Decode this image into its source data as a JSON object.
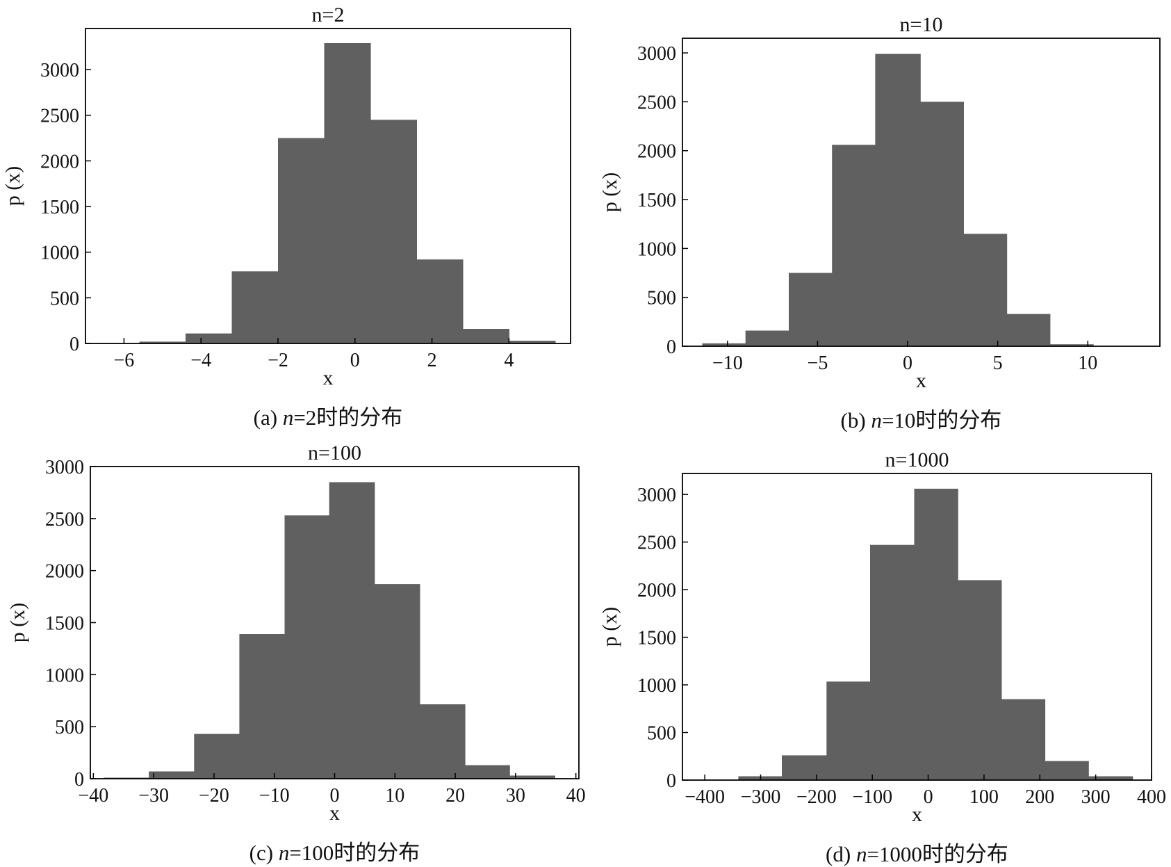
{
  "colors": {
    "bar": "#606060",
    "axis": "#000000",
    "text": "#111111"
  },
  "chart_data": [
    {
      "type": "bar",
      "title": "n=2",
      "xlabel": "x",
      "ylabel": "p (x)",
      "caption_prefix": "(a) ",
      "caption_var": "n",
      "caption_suffix": "=2时的分布",
      "xlim": [
        -7,
        5.6
      ],
      "ylim": [
        0,
        3450
      ],
      "xticks": [
        -6,
        -4,
        -2,
        0,
        2,
        4
      ],
      "xtick_labels": [
        "−6",
        "−4",
        "−2",
        "0",
        "2",
        "4"
      ],
      "yticks": [
        0,
        500,
        1000,
        1500,
        2000,
        2500,
        3000
      ],
      "ytick_labels": [
        "0",
        "500",
        "1000",
        "1500",
        "2000",
        "2500",
        "3000"
      ],
      "bin_edges": [
        -6.5,
        -5.6,
        -4.4,
        -3.2,
        -2.0,
        -0.8,
        0.4,
        1.6,
        2.8,
        4.0,
        5.2
      ],
      "values": [
        3,
        20,
        110,
        790,
        2250,
        3290,
        2450,
        920,
        160,
        30
      ]
    },
    {
      "type": "bar",
      "title": "n=10",
      "xlabel": "x",
      "ylabel": "p (x)",
      "caption_prefix": "(b) ",
      "caption_var": "n",
      "caption_suffix": "=10时的分布",
      "xlim": [
        -12.5,
        14
      ],
      "ylim": [
        0,
        3150
      ],
      "xticks": [
        -10,
        -5,
        0,
        5,
        10
      ],
      "xtick_labels": [
        "−10",
        "−5",
        "0",
        "5",
        "10"
      ],
      "yticks": [
        0,
        500,
        1000,
        1500,
        2000,
        2500,
        3000
      ],
      "ytick_labels": [
        "0",
        "500",
        "1000",
        "1500",
        "2000",
        "2500",
        "3000"
      ],
      "bin_edges": [
        -11.4,
        -9.0,
        -6.6,
        -4.2,
        -1.8,
        0.7,
        3.1,
        5.5,
        7.9,
        10.3
      ],
      "values": [
        30,
        160,
        750,
        2060,
        2990,
        2500,
        1150,
        330,
        20
      ]
    },
    {
      "type": "bar",
      "title": "n=100",
      "xlabel": "x",
      "ylabel": "p (x)",
      "caption_prefix": "(c) ",
      "caption_var": "n",
      "caption_suffix": "=100时的分布",
      "xlim": [
        -40.5,
        40.5
      ],
      "ylim": [
        0,
        3000
      ],
      "xticks": [
        -40,
        -30,
        -20,
        -10,
        0,
        10,
        20,
        30,
        40
      ],
      "xtick_labels": [
        "−40",
        "−30",
        "−20",
        "−10",
        "0",
        "10",
        "20",
        "30",
        "40"
      ],
      "yticks": [
        0,
        500,
        1000,
        1500,
        2000,
        2500,
        3000
      ],
      "ytick_labels": [
        "0",
        "500",
        "1000",
        "1500",
        "2000",
        "2500",
        "3000"
      ],
      "bin_edges": [
        -38.3,
        -30.8,
        -23.3,
        -15.8,
        -8.3,
        -0.9,
        6.6,
        14.1,
        21.6,
        29.0,
        36.5
      ],
      "values": [
        10,
        70,
        430,
        1390,
        2530,
        2850,
        1870,
        715,
        130,
        30
      ]
    },
    {
      "type": "bar",
      "title": "n=1000",
      "xlabel": "x",
      "ylabel": "p (x)",
      "caption_prefix": "(d) ",
      "caption_var": "n",
      "caption_suffix": "=1000时的分布",
      "xlim": [
        -440,
        400
      ],
      "ylim": [
        0,
        3220
      ],
      "xticks": [
        -400,
        -300,
        -200,
        -100,
        0,
        100,
        200,
        300,
        400
      ],
      "xtick_labels": [
        "−400",
        "−300",
        "−200",
        "−100",
        "0",
        "100",
        "200",
        "300",
        "400"
      ],
      "yticks": [
        0,
        500,
        1000,
        1500,
        2000,
        2500,
        3000
      ],
      "ytick_labels": [
        "0",
        "500",
        "1000",
        "1500",
        "2000",
        "2500",
        "3000"
      ],
      "bin_edges": [
        -340,
        -262,
        -182,
        -104,
        -25,
        53,
        131,
        209,
        287,
        366
      ],
      "values": [
        40,
        260,
        1035,
        2470,
        3060,
        2100,
        850,
        200,
        40
      ]
    }
  ]
}
